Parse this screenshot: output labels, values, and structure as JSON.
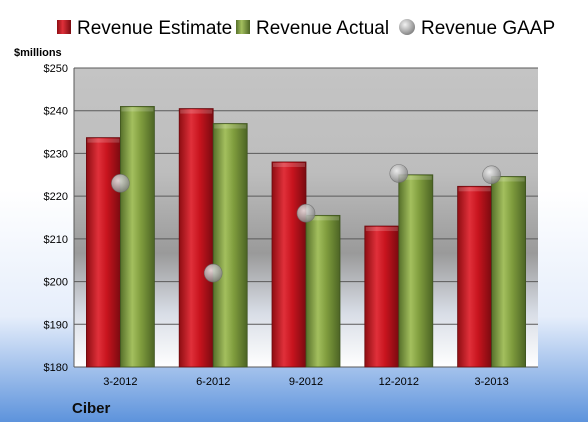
{
  "company": "Ciber",
  "chart_data": {
    "type": "bar",
    "ylabel": "$millions",
    "ylim": [
      180,
      250
    ],
    "yticks": [
      180,
      190,
      200,
      210,
      220,
      230,
      240,
      250
    ],
    "ytick_labels": [
      "$180",
      "$190",
      "$200",
      "$210",
      "$220",
      "$230",
      "$240",
      "$250"
    ],
    "categories": [
      "3-2012",
      "6-2012",
      "9-2012",
      "12-2012",
      "3-2013"
    ],
    "series": [
      {
        "name": "Revenue Estimate",
        "kind": "bar",
        "color": "#c8141e",
        "values": [
          233.7,
          240.5,
          228.0,
          213.0,
          222.3
        ]
      },
      {
        "name": "Revenue Actual",
        "kind": "bar",
        "color": "#7d9a3a",
        "values": [
          241.0,
          237.0,
          215.5,
          225.0,
          224.6
        ]
      },
      {
        "name": "Revenue GAAP",
        "kind": "marker",
        "color": "#a8a8a8",
        "values": [
          223.0,
          202.0,
          216.0,
          225.3,
          225.0
        ]
      }
    ],
    "grid": true,
    "legend": "top"
  }
}
